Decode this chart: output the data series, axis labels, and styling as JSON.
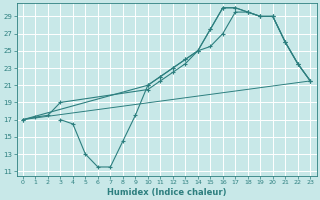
{
  "xlabel": "Humidex (Indice chaleur)",
  "bg_color": "#c8e8e8",
  "grid_color": "#ffffff",
  "line_color": "#2d7f7f",
  "xlim": [
    -0.5,
    23.5
  ],
  "ylim": [
    10.5,
    30.5
  ],
  "xticks": [
    0,
    1,
    2,
    3,
    4,
    5,
    6,
    7,
    8,
    9,
    10,
    11,
    12,
    13,
    14,
    15,
    16,
    17,
    18,
    19,
    20,
    21,
    22,
    23
  ],
  "yticks": [
    11,
    13,
    15,
    17,
    19,
    21,
    23,
    25,
    27,
    29
  ],
  "line1_x": [
    0,
    1,
    2,
    3,
    10,
    11,
    12,
    13,
    14,
    15,
    16,
    17,
    18,
    19,
    20,
    21,
    22,
    23
  ],
  "line1_y": [
    17,
    17.3,
    17.5,
    19,
    20.5,
    21.5,
    22.5,
    23.5,
    25,
    25.5,
    27,
    29.5,
    29.5,
    29,
    29,
    26,
    23.5,
    21.5
  ],
  "line2_x": [
    0,
    10,
    11,
    12,
    13,
    14,
    15,
    16,
    17,
    18,
    19,
    20,
    21,
    22,
    23
  ],
  "line2_y": [
    17,
    21,
    22,
    23,
    24,
    25,
    27.5,
    30,
    30,
    29.5,
    29,
    29,
    26,
    23.5,
    21.5
  ],
  "line3_x": [
    0,
    23
  ],
  "line3_y": [
    17,
    21.5
  ],
  "line4_x": [
    3,
    4,
    5,
    6,
    7,
    8,
    9,
    10,
    11,
    12,
    13,
    14,
    15,
    16,
    17,
    18,
    19,
    20,
    21,
    22,
    23
  ],
  "line4_y": [
    17,
    16.5,
    13,
    11.5,
    11.5,
    14.5,
    17.5,
    21,
    22,
    23,
    24,
    25,
    27.5,
    30,
    30,
    29.5,
    29,
    29,
    26,
    23.5,
    21.5
  ]
}
